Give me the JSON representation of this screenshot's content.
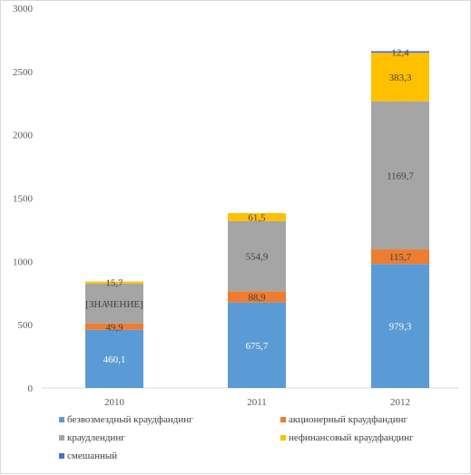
{
  "chart_data": {
    "type": "bar",
    "stacked": true,
    "categories": [
      "2010",
      "2011",
      "2012"
    ],
    "ylim": [
      0,
      3000
    ],
    "yticks": [
      0,
      500,
      1000,
      1500,
      2000,
      2500,
      3000
    ],
    "grid": false,
    "legend_position": "bottom",
    "series": [
      {
        "name": "безвозмездный краудфандинг",
        "values": [
          460.1,
          675.7,
          979.3
        ],
        "labels": [
          "460,1",
          "675,7",
          "979,3"
        ],
        "color": "#5b9bd5",
        "label_color": "#ffffff"
      },
      {
        "name": "акционерный краудфандинг",
        "values": [
          49.9,
          88.9,
          115.7
        ],
        "labels": [
          "49,9",
          "88,9",
          "115,7"
        ],
        "color": "#ed7d31",
        "label_color": "#404040"
      },
      {
        "name": "краудлендинг",
        "values": [
          315.0,
          554.9,
          1169.7
        ],
        "labels": [
          "[ЗНАЧЕНИЕ]",
          "554,9",
          "1169,7"
        ],
        "color": "#a5a5a5",
        "label_color": "#404040"
      },
      {
        "name": "нефинансовый краудфандинг",
        "values": [
          15.7,
          61.5,
          383.3
        ],
        "labels": [
          "15,7",
          "61,5",
          "383,3"
        ],
        "color": "#ffc000",
        "label_color": "#404040"
      },
      {
        "name": "смешанный",
        "values": [
          0,
          0,
          12.4
        ],
        "labels": [
          "",
          "",
          "12,4"
        ],
        "color": "#4472c4",
        "label_color": "#404040"
      }
    ]
  }
}
